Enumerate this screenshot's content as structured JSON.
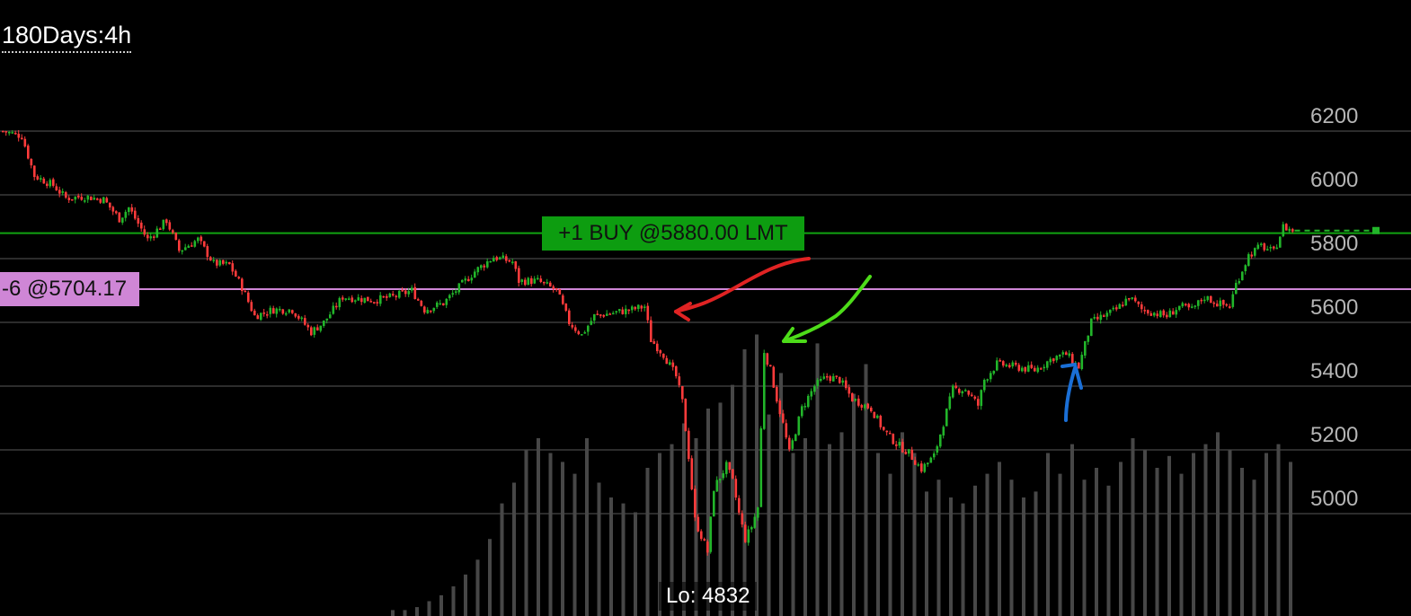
{
  "header": {
    "period_label": "180Days:4h"
  },
  "labels": {
    "order": "+1 BUY @5880.00 LMT",
    "position": "-6 @5704.17",
    "low": "Lo: 4832"
  },
  "colors": {
    "background": "#000000",
    "gridline": "#3a3a3a",
    "axis_text": "#b5b5b5",
    "up_candle": "#22b52a",
    "down_candle": "#ff3b3b",
    "volume": "#474747",
    "order_line": "#11a311",
    "position_line": "#cf86d6",
    "annotation_red": "#e02323",
    "annotation_green": "#4ddc19",
    "annotation_blue": "#1a6fd6"
  },
  "chart_data": {
    "type": "candlestick",
    "interval": "4h",
    "range_days": 180,
    "y_ticks": [
      5000,
      5200,
      5400,
      5600,
      5800,
      6000,
      6200
    ],
    "ylim": [
      4832,
      6240
    ],
    "grid": true,
    "low_value": 4832,
    "reference_lines": [
      {
        "name": "order",
        "value": 5880.0
      },
      {
        "name": "position",
        "value": 5704.17
      }
    ],
    "close_path": [
      [
        0,
        6200
      ],
      [
        6,
        6185
      ],
      [
        10,
        6060
      ],
      [
        16,
        6030
      ],
      [
        20,
        5990
      ],
      [
        26,
        5995
      ],
      [
        32,
        5985
      ],
      [
        37,
        5925
      ],
      [
        40,
        5960
      ],
      [
        46,
        5860
      ],
      [
        52,
        5920
      ],
      [
        56,
        5825
      ],
      [
        62,
        5860
      ],
      [
        67,
        5785
      ],
      [
        72,
        5780
      ],
      [
        76,
        5710
      ],
      [
        80,
        5620
      ],
      [
        86,
        5640
      ],
      [
        92,
        5640
      ],
      [
        98,
        5570
      ],
      [
        102,
        5600
      ],
      [
        108,
        5680
      ],
      [
        113,
        5675
      ],
      [
        118,
        5670
      ],
      [
        124,
        5680
      ],
      [
        130,
        5700
      ],
      [
        134,
        5640
      ],
      [
        140,
        5660
      ],
      [
        144,
        5700
      ],
      [
        150,
        5760
      ],
      [
        156,
        5805
      ],
      [
        162,
        5790
      ],
      [
        164,
        5730
      ],
      [
        170,
        5730
      ],
      [
        176,
        5700
      ],
      [
        180,
        5600
      ],
      [
        184,
        5560
      ],
      [
        188,
        5620
      ],
      [
        194,
        5630
      ],
      [
        200,
        5640
      ],
      [
        204,
        5650
      ],
      [
        206,
        5545
      ],
      [
        210,
        5500
      ],
      [
        214,
        5430
      ],
      [
        216,
        5350
      ],
      [
        218,
        5180
      ],
      [
        220,
        4980
      ],
      [
        224,
        4880
      ],
      [
        226,
        5080
      ],
      [
        230,
        5150
      ],
      [
        232,
        5100
      ],
      [
        234,
        5000
      ],
      [
        236,
        4920
      ],
      [
        238,
        4960
      ],
      [
        240,
        5020
      ],
      [
        242,
        5510
      ],
      [
        244,
        5450
      ],
      [
        246,
        5360
      ],
      [
        248,
        5280
      ],
      [
        250,
        5190
      ],
      [
        254,
        5330
      ],
      [
        258,
        5400
      ],
      [
        262,
        5430
      ],
      [
        266,
        5420
      ],
      [
        270,
        5360
      ],
      [
        276,
        5330
      ],
      [
        280,
        5260
      ],
      [
        284,
        5220
      ],
      [
        288,
        5190
      ],
      [
        292,
        5140
      ],
      [
        296,
        5180
      ],
      [
        298,
        5250
      ],
      [
        302,
        5390
      ],
      [
        306,
        5390
      ],
      [
        310,
        5340
      ],
      [
        312,
        5420
      ],
      [
        316,
        5470
      ],
      [
        322,
        5460
      ],
      [
        328,
        5450
      ],
      [
        334,
        5490
      ],
      [
        338,
        5500
      ],
      [
        342,
        5460
      ],
      [
        346,
        5600
      ],
      [
        350,
        5620
      ],
      [
        354,
        5640
      ],
      [
        358,
        5680
      ],
      [
        362,
        5640
      ],
      [
        366,
        5630
      ],
      [
        370,
        5620
      ],
      [
        374,
        5650
      ],
      [
        378,
        5640
      ],
      [
        382,
        5680
      ],
      [
        386,
        5660
      ],
      [
        390,
        5650
      ],
      [
        392,
        5720
      ],
      [
        396,
        5810
      ],
      [
        400,
        5840
      ],
      [
        404,
        5820
      ],
      [
        407,
        5900
      ],
      [
        410,
        5888
      ]
    ],
    "volume_relative": [
      0.02,
      0.02,
      0.03,
      0.05,
      0.07,
      0.1,
      0.14,
      0.19,
      0.26,
      0.38,
      0.45,
      0.56,
      0.6,
      0.55,
      0.52,
      0.48,
      0.6,
      0.45,
      0.4,
      0.38,
      0.35,
      0.5,
      0.55,
      0.58,
      0.65,
      0.6,
      0.7,
      0.72,
      0.78,
      0.9,
      0.95,
      0.68,
      0.82,
      0.55,
      0.6,
      0.92,
      0.58,
      0.62,
      0.75,
      0.85,
      0.55,
      0.48,
      0.62,
      0.55,
      0.42,
      0.46,
      0.4,
      0.38,
      0.44,
      0.48,
      0.52,
      0.46,
      0.4,
      0.42,
      0.55,
      0.48,
      0.58,
      0.46,
      0.5,
      0.44,
      0.52,
      0.6,
      0.56,
      0.5,
      0.54,
      0.48,
      0.55,
      0.58,
      0.62,
      0.56,
      0.5,
      0.46,
      0.55,
      0.58,
      0.52
    ]
  }
}
